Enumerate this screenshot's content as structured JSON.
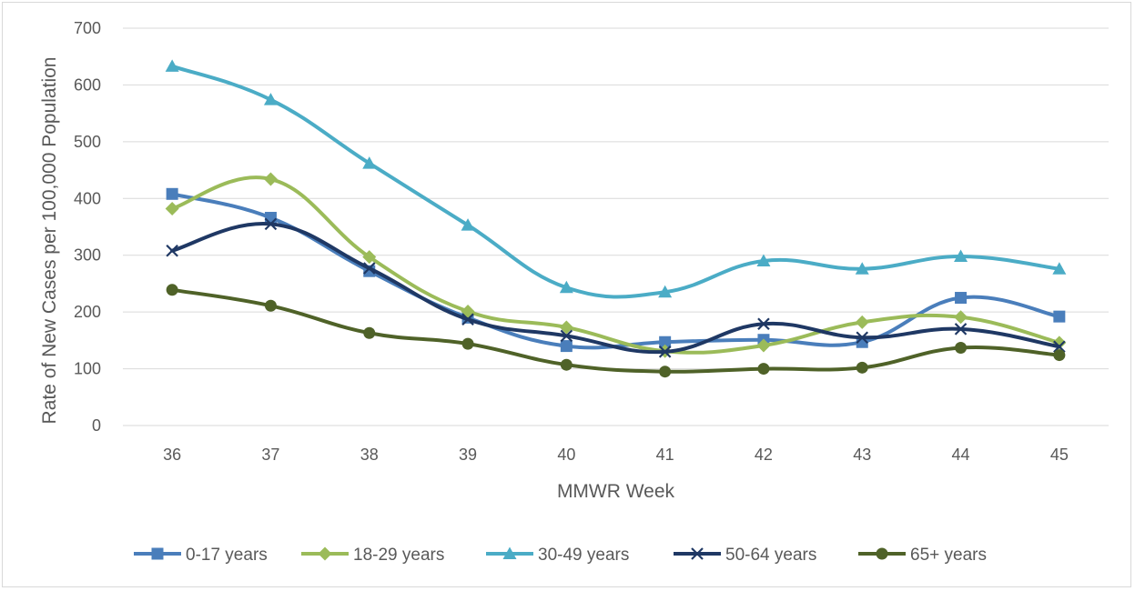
{
  "chart_data": {
    "type": "line",
    "title": "",
    "xlabel": "MMWR Week",
    "ylabel": "Rate of New Cases per 100,000 Population",
    "x": [
      "36",
      "37",
      "38",
      "39",
      "40",
      "41",
      "42",
      "43",
      "44",
      "45"
    ],
    "ylim": [
      0,
      700
    ],
    "yticks": [
      "0",
      "100",
      "200",
      "300",
      "400",
      "500",
      "600",
      "700"
    ],
    "grid": "horizontal",
    "legend_position": "bottom",
    "series": [
      {
        "name": "0-17 years",
        "color": "#4a7ebb",
        "marker": "square",
        "values": [
          408,
          366,
          272,
          190,
          140,
          147,
          151,
          147,
          225,
          192
        ]
      },
      {
        "name": "18-29 years",
        "color": "#9bbb59",
        "marker": "diamond",
        "values": [
          382,
          434,
          297,
          201,
          173,
          131,
          141,
          182,
          191,
          146
        ]
      },
      {
        "name": "30-49 years",
        "color": "#4bacc6",
        "marker": "triangle",
        "values": [
          633,
          574,
          462,
          353,
          243,
          235,
          290,
          276,
          298,
          276
        ]
      },
      {
        "name": "50-64 years",
        "color": "#1f3864",
        "marker": "x",
        "values": [
          308,
          355,
          277,
          187,
          158,
          130,
          179,
          155,
          170,
          139
        ]
      },
      {
        "name": "65+ years",
        "color": "#4f6228",
        "marker": "circle",
        "values": [
          239,
          211,
          163,
          144,
          107,
          95,
          100,
          102,
          137,
          124
        ]
      }
    ]
  }
}
